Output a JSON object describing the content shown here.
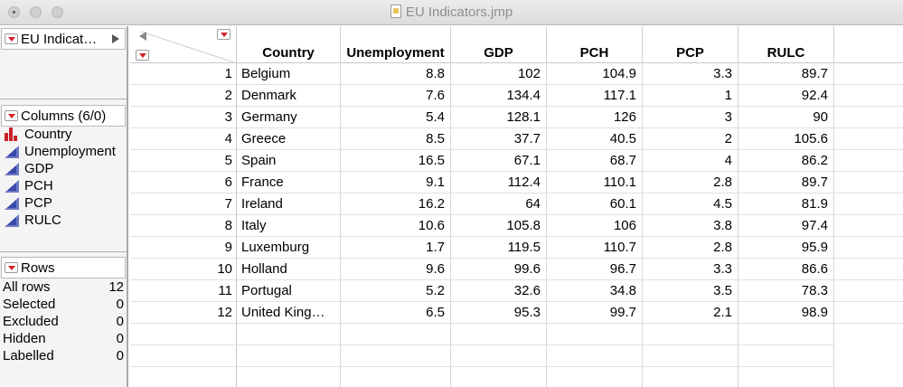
{
  "window": {
    "title": "EU Indicators.jmp"
  },
  "left_panel": {
    "table_name": "EU Indicat…",
    "columns_header": "Columns (6/0)",
    "columns": [
      {
        "name": "Country",
        "type": "nominal"
      },
      {
        "name": "Unemployment",
        "type": "continuous"
      },
      {
        "name": "GDP",
        "type": "continuous"
      },
      {
        "name": "PCH",
        "type": "continuous"
      },
      {
        "name": "PCP",
        "type": "continuous"
      },
      {
        "name": "RULC",
        "type": "continuous"
      }
    ],
    "rows_header": "Rows",
    "row_stats": [
      {
        "label": "All rows",
        "value": "12"
      },
      {
        "label": "Selected",
        "value": "0"
      },
      {
        "label": "Excluded",
        "value": "0"
      },
      {
        "label": "Hidden",
        "value": "0"
      },
      {
        "label": "Labelled",
        "value": "0"
      }
    ]
  },
  "table": {
    "headers": [
      "Country",
      "Unemployment",
      "GDP",
      "PCH",
      "PCP",
      "RULC"
    ],
    "rows": [
      [
        "1",
        "Belgium",
        "8.8",
        "102",
        "104.9",
        "3.3",
        "89.7"
      ],
      [
        "2",
        "Denmark",
        "7.6",
        "134.4",
        "117.1",
        "1",
        "92.4"
      ],
      [
        "3",
        "Germany",
        "5.4",
        "128.1",
        "126",
        "3",
        "90"
      ],
      [
        "4",
        "Greece",
        "8.5",
        "37.7",
        "40.5",
        "2",
        "105.6"
      ],
      [
        "5",
        "Spain",
        "16.5",
        "67.1",
        "68.7",
        "4",
        "86.2"
      ],
      [
        "6",
        "France",
        "9.1",
        "112.4",
        "110.1",
        "2.8",
        "89.7"
      ],
      [
        "7",
        "Ireland",
        "16.2",
        "64",
        "60.1",
        "4.5",
        "81.9"
      ],
      [
        "8",
        "Italy",
        "10.6",
        "105.8",
        "106",
        "3.8",
        "97.4"
      ],
      [
        "9",
        "Luxemburg",
        "1.7",
        "119.5",
        "110.7",
        "2.8",
        "95.9"
      ],
      [
        "10",
        "Holland",
        "9.6",
        "99.6",
        "96.7",
        "3.3",
        "86.6"
      ],
      [
        "11",
        "Portugal",
        "5.2",
        "32.6",
        "34.8",
        "3.5",
        "78.3"
      ],
      [
        "12",
        "United King…",
        "6.5",
        "95.3",
        "99.7",
        "2.1",
        "98.9"
      ]
    ]
  }
}
